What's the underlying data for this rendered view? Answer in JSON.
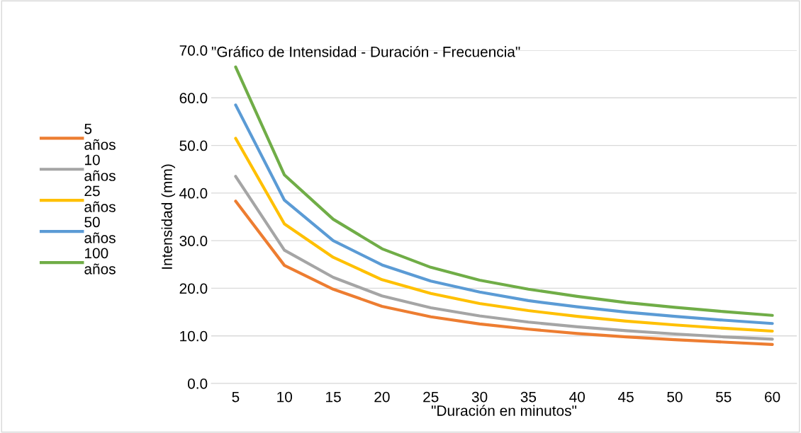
{
  "chart_data": {
    "type": "line",
    "title": "\"Gráfico de Intensidad - Duración - Frecuencia\"",
    "xlabel": "\"Duración en minutos\"",
    "ylabel": "Intensidad (mm)",
    "categories": [
      "5",
      "10",
      "15",
      "20",
      "25",
      "30",
      "35",
      "40",
      "45",
      "50",
      "55",
      "60"
    ],
    "series": [
      {
        "name": "5 años",
        "color": "#ed7d31",
        "values": [
          38.3,
          24.8,
          19.8,
          16.2,
          14.0,
          12.5,
          11.4,
          10.5,
          9.8,
          9.2,
          8.7,
          8.2
        ]
      },
      {
        "name": "10 años",
        "color": "#a5a5a5",
        "values": [
          43.5,
          28.0,
          22.3,
          18.4,
          15.9,
          14.2,
          12.9,
          11.9,
          11.1,
          10.4,
          9.8,
          9.3
        ]
      },
      {
        "name": "25 años",
        "color": "#ffc000",
        "values": [
          51.5,
          33.5,
          26.5,
          21.8,
          18.9,
          16.8,
          15.3,
          14.1,
          13.1,
          12.3,
          11.6,
          11.0
        ]
      },
      {
        "name": "50 años",
        "color": "#5b9bd5",
        "values": [
          58.5,
          38.5,
          30.0,
          24.9,
          21.5,
          19.2,
          17.4,
          16.1,
          15.0,
          14.1,
          13.3,
          12.6
        ]
      },
      {
        "name": "100 años",
        "color": "#70ad47",
        "values": [
          66.5,
          43.8,
          34.5,
          28.3,
          24.4,
          21.7,
          19.8,
          18.3,
          17.0,
          16.0,
          15.1,
          14.3
        ]
      }
    ],
    "ylim": [
      0,
      70
    ],
    "yticks": [
      {
        "value": 0,
        "label": "0.0"
      },
      {
        "value": 10,
        "label": "10.0"
      },
      {
        "value": 20,
        "label": "20.0"
      },
      {
        "value": 30,
        "label": "30.0"
      },
      {
        "value": 40,
        "label": "40.0"
      },
      {
        "value": 50,
        "label": "50.0"
      },
      {
        "value": 60,
        "label": "60.0"
      },
      {
        "value": 70,
        "label": "70.0"
      }
    ],
    "grid": "y",
    "legend": "left",
    "marker": "none",
    "line_style": "solid"
  }
}
